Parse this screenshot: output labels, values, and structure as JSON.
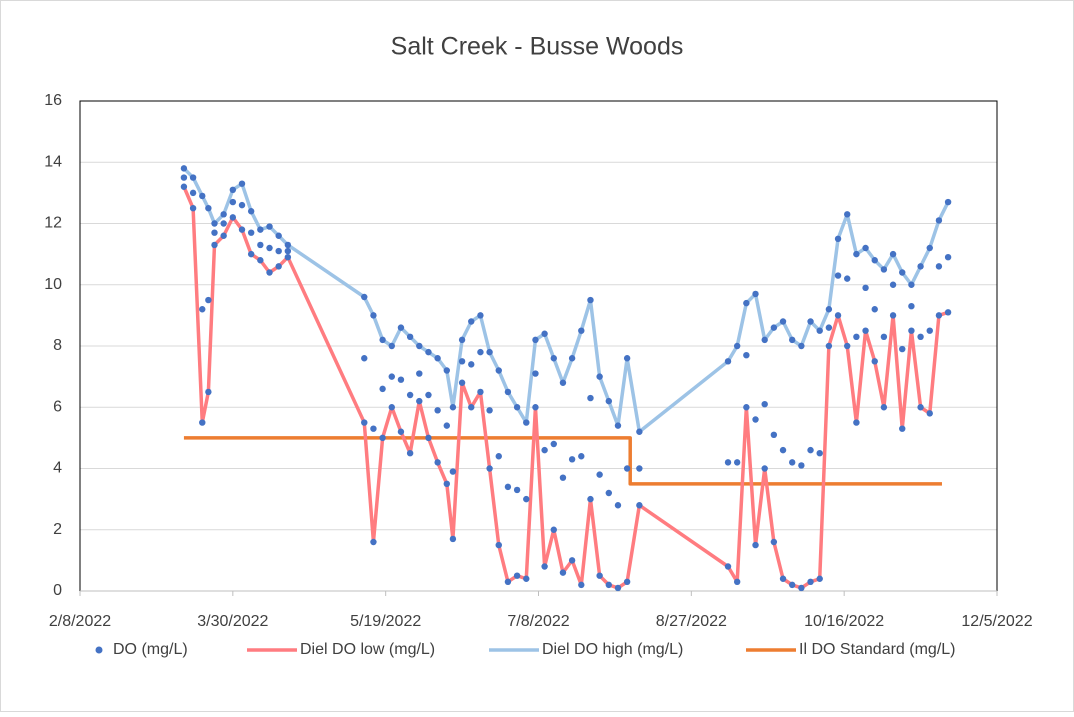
{
  "chart_data": {
    "type": "scatter",
    "title": "Salt Creek - Busse Woods",
    "xlim": [
      "2022-02-08",
      "2022-12-05"
    ],
    "xticks": [
      {
        "value": "2022-02-08",
        "label": "2/8/2022"
      },
      {
        "value": "2022-03-30",
        "label": "3/30/2022"
      },
      {
        "value": "2022-05-19",
        "label": "5/19/2022"
      },
      {
        "value": "2022-07-08",
        "label": "7/8/2022"
      },
      {
        "value": "2022-08-27",
        "label": "8/27/2022"
      },
      {
        "value": "2022-10-16",
        "label": "10/16/2022"
      },
      {
        "value": "2022-12-05",
        "label": "12/5/2022"
      }
    ],
    "ylim": [
      0,
      16
    ],
    "yticks": [
      0,
      2,
      4,
      6,
      8,
      10,
      12,
      14,
      16
    ],
    "grid": true,
    "legend": "bottom",
    "series": [
      {
        "name": "DO (mg/L)",
        "type": "scatter",
        "color": "#4472c4",
        "x": [
          "2022-03-14",
          "2022-03-14",
          "2022-03-14",
          "2022-03-17",
          "2022-03-17",
          "2022-03-17",
          "2022-03-20",
          "2022-03-20",
          "2022-03-20",
          "2022-03-22",
          "2022-03-22",
          "2022-03-22",
          "2022-03-24",
          "2022-03-24",
          "2022-03-24",
          "2022-03-27",
          "2022-03-27",
          "2022-03-27",
          "2022-03-30",
          "2022-03-30",
          "2022-03-30",
          "2022-04-02",
          "2022-04-02",
          "2022-04-02",
          "2022-04-05",
          "2022-04-05",
          "2022-04-05",
          "2022-04-08",
          "2022-04-08",
          "2022-04-08",
          "2022-04-11",
          "2022-04-11",
          "2022-04-11",
          "2022-04-14",
          "2022-04-14",
          "2022-04-14",
          "2022-04-17",
          "2022-04-17",
          "2022-04-17",
          "2022-05-12",
          "2022-05-12",
          "2022-05-12",
          "2022-05-15",
          "2022-05-15",
          "2022-05-15",
          "2022-05-18",
          "2022-05-18",
          "2022-05-18",
          "2022-05-21",
          "2022-05-21",
          "2022-05-21",
          "2022-05-24",
          "2022-05-24",
          "2022-05-24",
          "2022-05-27",
          "2022-05-27",
          "2022-05-27",
          "2022-05-30",
          "2022-05-30",
          "2022-05-30",
          "2022-06-02",
          "2022-06-02",
          "2022-06-02",
          "2022-06-05",
          "2022-06-05",
          "2022-06-05",
          "2022-06-08",
          "2022-06-08",
          "2022-06-08",
          "2022-06-10",
          "2022-06-10",
          "2022-06-10",
          "2022-06-13",
          "2022-06-13",
          "2022-06-13",
          "2022-06-16",
          "2022-06-16",
          "2022-06-16",
          "2022-06-19",
          "2022-06-19",
          "2022-06-19",
          "2022-06-22",
          "2022-06-22",
          "2022-06-22",
          "2022-06-25",
          "2022-06-25",
          "2022-06-25",
          "2022-06-28",
          "2022-06-28",
          "2022-06-28",
          "2022-07-01",
          "2022-07-01",
          "2022-07-01",
          "2022-07-04",
          "2022-07-04",
          "2022-07-04",
          "2022-07-07",
          "2022-07-07",
          "2022-07-07",
          "2022-07-10",
          "2022-07-10",
          "2022-07-10",
          "2022-07-13",
          "2022-07-13",
          "2022-07-13",
          "2022-07-16",
          "2022-07-16",
          "2022-07-16",
          "2022-07-19",
          "2022-07-19",
          "2022-07-19",
          "2022-07-22",
          "2022-07-22",
          "2022-07-22",
          "2022-07-25",
          "2022-07-25",
          "2022-07-25",
          "2022-07-28",
          "2022-07-28",
          "2022-07-28",
          "2022-07-31",
          "2022-07-31",
          "2022-07-31",
          "2022-08-03",
          "2022-08-03",
          "2022-08-03",
          "2022-08-06",
          "2022-08-06",
          "2022-08-06",
          "2022-08-10",
          "2022-08-10",
          "2022-08-10",
          "2022-09-08",
          "2022-09-08",
          "2022-09-08",
          "2022-09-11",
          "2022-09-11",
          "2022-09-11",
          "2022-09-14",
          "2022-09-14",
          "2022-09-14",
          "2022-09-17",
          "2022-09-17",
          "2022-09-17",
          "2022-09-20",
          "2022-09-20",
          "2022-09-20",
          "2022-09-23",
          "2022-09-23",
          "2022-09-23",
          "2022-09-26",
          "2022-09-26",
          "2022-09-26",
          "2022-09-29",
          "2022-09-29",
          "2022-09-29",
          "2022-10-02",
          "2022-10-02",
          "2022-10-02",
          "2022-10-05",
          "2022-10-05",
          "2022-10-05",
          "2022-10-08",
          "2022-10-08",
          "2022-10-08",
          "2022-10-11",
          "2022-10-11",
          "2022-10-11",
          "2022-10-14",
          "2022-10-14",
          "2022-10-14",
          "2022-10-17",
          "2022-10-17",
          "2022-10-17",
          "2022-10-20",
          "2022-10-20",
          "2022-10-20",
          "2022-10-23",
          "2022-10-23",
          "2022-10-23",
          "2022-10-26",
          "2022-10-26",
          "2022-10-26",
          "2022-10-29",
          "2022-10-29",
          "2022-10-29",
          "2022-11-01",
          "2022-11-01",
          "2022-11-01",
          "2022-11-04",
          "2022-11-04",
          "2022-11-04",
          "2022-11-07",
          "2022-11-07",
          "2022-11-07",
          "2022-11-10",
          "2022-11-10",
          "2022-11-10",
          "2022-11-13",
          "2022-11-13",
          "2022-11-13",
          "2022-11-16",
          "2022-11-16",
          "2022-11-16",
          "2022-11-19",
          "2022-11-19",
          "2022-11-19"
        ],
        "values": [
          13.2,
          13.5,
          13.8,
          12.5,
          13.0,
          13.5,
          5.5,
          9.2,
          12.9,
          6.5,
          9.5,
          12.5,
          11.3,
          11.7,
          12.0,
          11.6,
          12.0,
          12.3,
          12.2,
          12.7,
          13.1,
          11.8,
          12.6,
          13.3,
          11.0,
          11.7,
          12.4,
          10.8,
          11.3,
          11.8,
          10.4,
          11.2,
          11.9,
          10.6,
          11.1,
          11.6,
          10.9,
          11.1,
          11.3,
          5.5,
          7.6,
          9.6,
          1.6,
          5.3,
          9.0,
          5.0,
          6.6,
          8.2,
          6.0,
          7.0,
          8.0,
          5.2,
          6.9,
          8.6,
          4.5,
          6.4,
          8.3,
          6.2,
          7.1,
          8.0,
          5.0,
          6.4,
          7.8,
          4.2,
          5.9,
          7.6,
          3.5,
          5.4,
          7.2,
          1.7,
          3.9,
          6.0,
          6.8,
          7.5,
          8.2,
          6.0,
          7.4,
          8.8,
          6.5,
          7.8,
          9.0,
          4.0,
          5.9,
          7.8,
          1.5,
          4.4,
          7.2,
          0.3,
          3.4,
          6.5,
          0.5,
          3.3,
          6.0,
          0.4,
          3.0,
          5.5,
          6.0,
          7.1,
          8.2,
          0.8,
          4.6,
          8.4,
          2.0,
          4.8,
          7.6,
          0.6,
          3.7,
          6.8,
          1.0,
          4.3,
          7.6,
          0.2,
          4.4,
          8.5,
          3.0,
          6.3,
          9.5,
          0.5,
          3.8,
          7.0,
          0.2,
          3.2,
          6.2,
          0.1,
          2.8,
          5.4,
          0.3,
          4.0,
          7.6,
          2.8,
          4.0,
          5.2,
          0.8,
          4.2,
          7.5,
          0.3,
          4.2,
          8.0,
          6.0,
          7.7,
          9.4,
          1.5,
          5.6,
          9.7,
          4.0,
          6.1,
          8.2,
          1.6,
          5.1,
          8.6,
          0.4,
          4.6,
          8.8,
          0.2,
          4.2,
          8.2,
          0.1,
          4.1,
          8.0,
          0.3,
          4.6,
          8.8,
          0.4,
          4.5,
          8.5,
          8.0,
          8.6,
          9.2,
          9.0,
          10.3,
          11.5,
          8.0,
          10.2,
          12.3,
          5.5,
          8.3,
          11.0,
          8.5,
          9.9,
          11.2,
          7.5,
          9.2,
          10.8,
          6.0,
          8.3,
          10.5,
          9.0,
          10.0,
          11.0,
          5.3,
          7.9,
          10.4,
          8.5,
          9.3,
          10.0,
          6.0,
          8.3,
          10.6,
          5.8,
          8.5,
          11.2,
          9.0,
          10.6,
          12.1,
          9.1,
          10.9,
          12.7
        ]
      },
      {
        "name": "Diel DO low (mg/L)",
        "type": "line",
        "color": "#ff7c80",
        "x": [
          "2022-03-14",
          "2022-03-17",
          "2022-03-20",
          "2022-03-22",
          "2022-03-24",
          "2022-03-27",
          "2022-03-30",
          "2022-04-02",
          "2022-04-05",
          "2022-04-08",
          "2022-04-11",
          "2022-04-14",
          "2022-04-17",
          "2022-05-12",
          "2022-05-15",
          "2022-05-18",
          "2022-05-21",
          "2022-05-24",
          "2022-05-27",
          "2022-05-30",
          "2022-06-02",
          "2022-06-05",
          "2022-06-08",
          "2022-06-10",
          "2022-06-13",
          "2022-06-16",
          "2022-06-19",
          "2022-06-22",
          "2022-06-25",
          "2022-06-28",
          "2022-07-01",
          "2022-07-04",
          "2022-07-07",
          "2022-07-10",
          "2022-07-13",
          "2022-07-16",
          "2022-07-19",
          "2022-07-22",
          "2022-07-25",
          "2022-07-28",
          "2022-07-31",
          "2022-08-03",
          "2022-08-06",
          "2022-08-10",
          "2022-09-08",
          "2022-09-11",
          "2022-09-14",
          "2022-09-17",
          "2022-09-20",
          "2022-09-23",
          "2022-09-26",
          "2022-09-29",
          "2022-10-02",
          "2022-10-05",
          "2022-10-08",
          "2022-10-11",
          "2022-10-14",
          "2022-10-17",
          "2022-10-20",
          "2022-10-23",
          "2022-10-26",
          "2022-10-29",
          "2022-11-01",
          "2022-11-04",
          "2022-11-07",
          "2022-11-10",
          "2022-11-13",
          "2022-11-16",
          "2022-11-19"
        ],
        "values": [
          13.2,
          12.5,
          5.5,
          6.5,
          11.3,
          11.6,
          12.2,
          11.8,
          11.0,
          10.8,
          10.4,
          10.6,
          10.9,
          5.5,
          1.6,
          5.0,
          6.0,
          5.2,
          4.5,
          6.2,
          5.0,
          4.2,
          3.5,
          1.7,
          6.8,
          6.0,
          6.5,
          4.0,
          1.5,
          0.3,
          0.5,
          0.4,
          6.0,
          0.8,
          2.0,
          0.6,
          1.0,
          0.2,
          3.0,
          0.5,
          0.2,
          0.1,
          0.3,
          2.8,
          0.8,
          0.3,
          6.0,
          1.5,
          4.0,
          1.6,
          0.4,
          0.2,
          0.1,
          0.3,
          0.4,
          8.0,
          9.0,
          8.0,
          5.5,
          8.5,
          7.5,
          6.0,
          9.0,
          5.3,
          8.5,
          6.0,
          5.8,
          9.0,
          9.1
        ]
      },
      {
        "name": "Diel DO high (mg/L)",
        "type": "line",
        "color": "#9dc3e6",
        "x": [
          "2022-03-14",
          "2022-03-17",
          "2022-03-20",
          "2022-03-22",
          "2022-03-24",
          "2022-03-27",
          "2022-03-30",
          "2022-04-02",
          "2022-04-05",
          "2022-04-08",
          "2022-04-11",
          "2022-04-14",
          "2022-04-17",
          "2022-05-12",
          "2022-05-15",
          "2022-05-18",
          "2022-05-21",
          "2022-05-24",
          "2022-05-27",
          "2022-05-30",
          "2022-06-02",
          "2022-06-05",
          "2022-06-08",
          "2022-06-10",
          "2022-06-13",
          "2022-06-16",
          "2022-06-19",
          "2022-06-22",
          "2022-06-25",
          "2022-06-28",
          "2022-07-01",
          "2022-07-04",
          "2022-07-07",
          "2022-07-10",
          "2022-07-13",
          "2022-07-16",
          "2022-07-19",
          "2022-07-22",
          "2022-07-25",
          "2022-07-28",
          "2022-07-31",
          "2022-08-03",
          "2022-08-06",
          "2022-08-10",
          "2022-09-08",
          "2022-09-11",
          "2022-09-14",
          "2022-09-17",
          "2022-09-20",
          "2022-09-23",
          "2022-09-26",
          "2022-09-29",
          "2022-10-02",
          "2022-10-05",
          "2022-10-08",
          "2022-10-11",
          "2022-10-14",
          "2022-10-17",
          "2022-10-20",
          "2022-10-23",
          "2022-10-26",
          "2022-10-29",
          "2022-11-01",
          "2022-11-04",
          "2022-11-07",
          "2022-11-10",
          "2022-11-13",
          "2022-11-16",
          "2022-11-19"
        ],
        "values": [
          13.8,
          13.5,
          12.9,
          12.5,
          12.0,
          12.3,
          13.1,
          13.3,
          12.4,
          11.8,
          11.9,
          11.6,
          11.3,
          9.6,
          9.0,
          8.2,
          8.0,
          8.6,
          8.3,
          8.0,
          7.8,
          7.6,
          7.2,
          6.0,
          8.2,
          8.8,
          9.0,
          7.8,
          7.2,
          6.5,
          6.0,
          5.5,
          8.2,
          8.4,
          7.6,
          6.8,
          7.6,
          8.5,
          9.5,
          7.0,
          6.2,
          5.4,
          7.6,
          5.2,
          7.5,
          8.0,
          9.4,
          9.7,
          8.2,
          8.6,
          8.8,
          8.2,
          8.0,
          8.8,
          8.5,
          9.2,
          11.5,
          12.3,
          11.0,
          11.2,
          10.8,
          10.5,
          11.0,
          10.4,
          10.0,
          10.6,
          11.2,
          12.1,
          12.7
        ]
      },
      {
        "name": "Il DO Standard (mg/L)",
        "type": "line",
        "color": "#ed7d31",
        "x": [
          "2022-03-14",
          "2022-08-07",
          "2022-08-07",
          "2022-11-17"
        ],
        "values": [
          5,
          5,
          3.5,
          3.5
        ]
      }
    ]
  }
}
